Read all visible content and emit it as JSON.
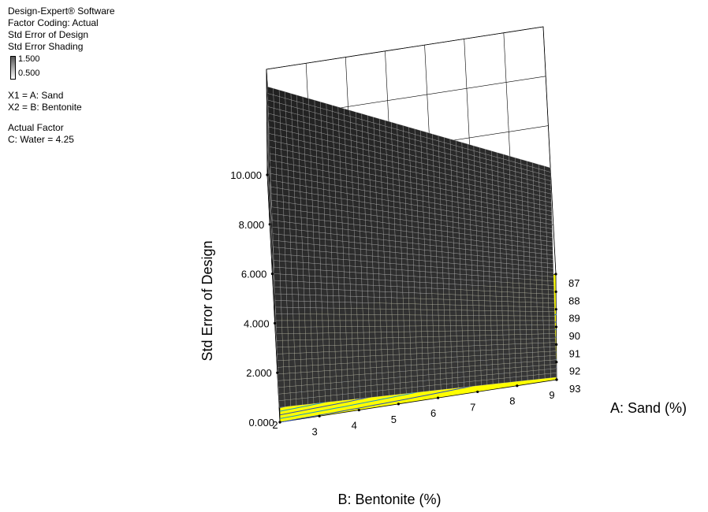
{
  "info": {
    "software": "Design-Expert® Software",
    "coding": "Factor Coding: Actual",
    "response": "Std Error of Design",
    "shading": "Std Error Shading",
    "shade_max": "1.500",
    "shade_min": "0.500",
    "x1": "X1 = A: Sand",
    "x2": "X2 = B: Bentonite",
    "actual_factor": "Actual Factor",
    "water": "C: Water = 4.25"
  },
  "chart_data": {
    "type": "surface3d",
    "zlabel": "Std Error of Design",
    "alabel": "A: Sand (%)",
    "blabel": "B: Bentonite (%)",
    "z_ticks": [
      "0.000",
      "2.000",
      "4.000",
      "6.000",
      "8.000",
      "10.000"
    ],
    "zlim": [
      0,
      10
    ],
    "a_ticks": [
      "87",
      "88",
      "89",
      "90",
      "91",
      "92",
      "93"
    ],
    "alim": [
      87,
      93
    ],
    "b_ticks": [
      "2",
      "3",
      "4",
      "5",
      "6",
      "7",
      "8",
      "9"
    ],
    "blim": [
      2,
      9
    ],
    "surface_corners": [
      {
        "b": 2,
        "a": 87,
        "z": 9.3
      },
      {
        "b": 9,
        "a": 87,
        "z": 4.3
      },
      {
        "b": 2,
        "a": 93,
        "z": 0.6
      },
      {
        "b": 9,
        "a": 93,
        "z": 0.1
      }
    ],
    "floor_color": "#ffff00",
    "surface_color": "#111111"
  }
}
